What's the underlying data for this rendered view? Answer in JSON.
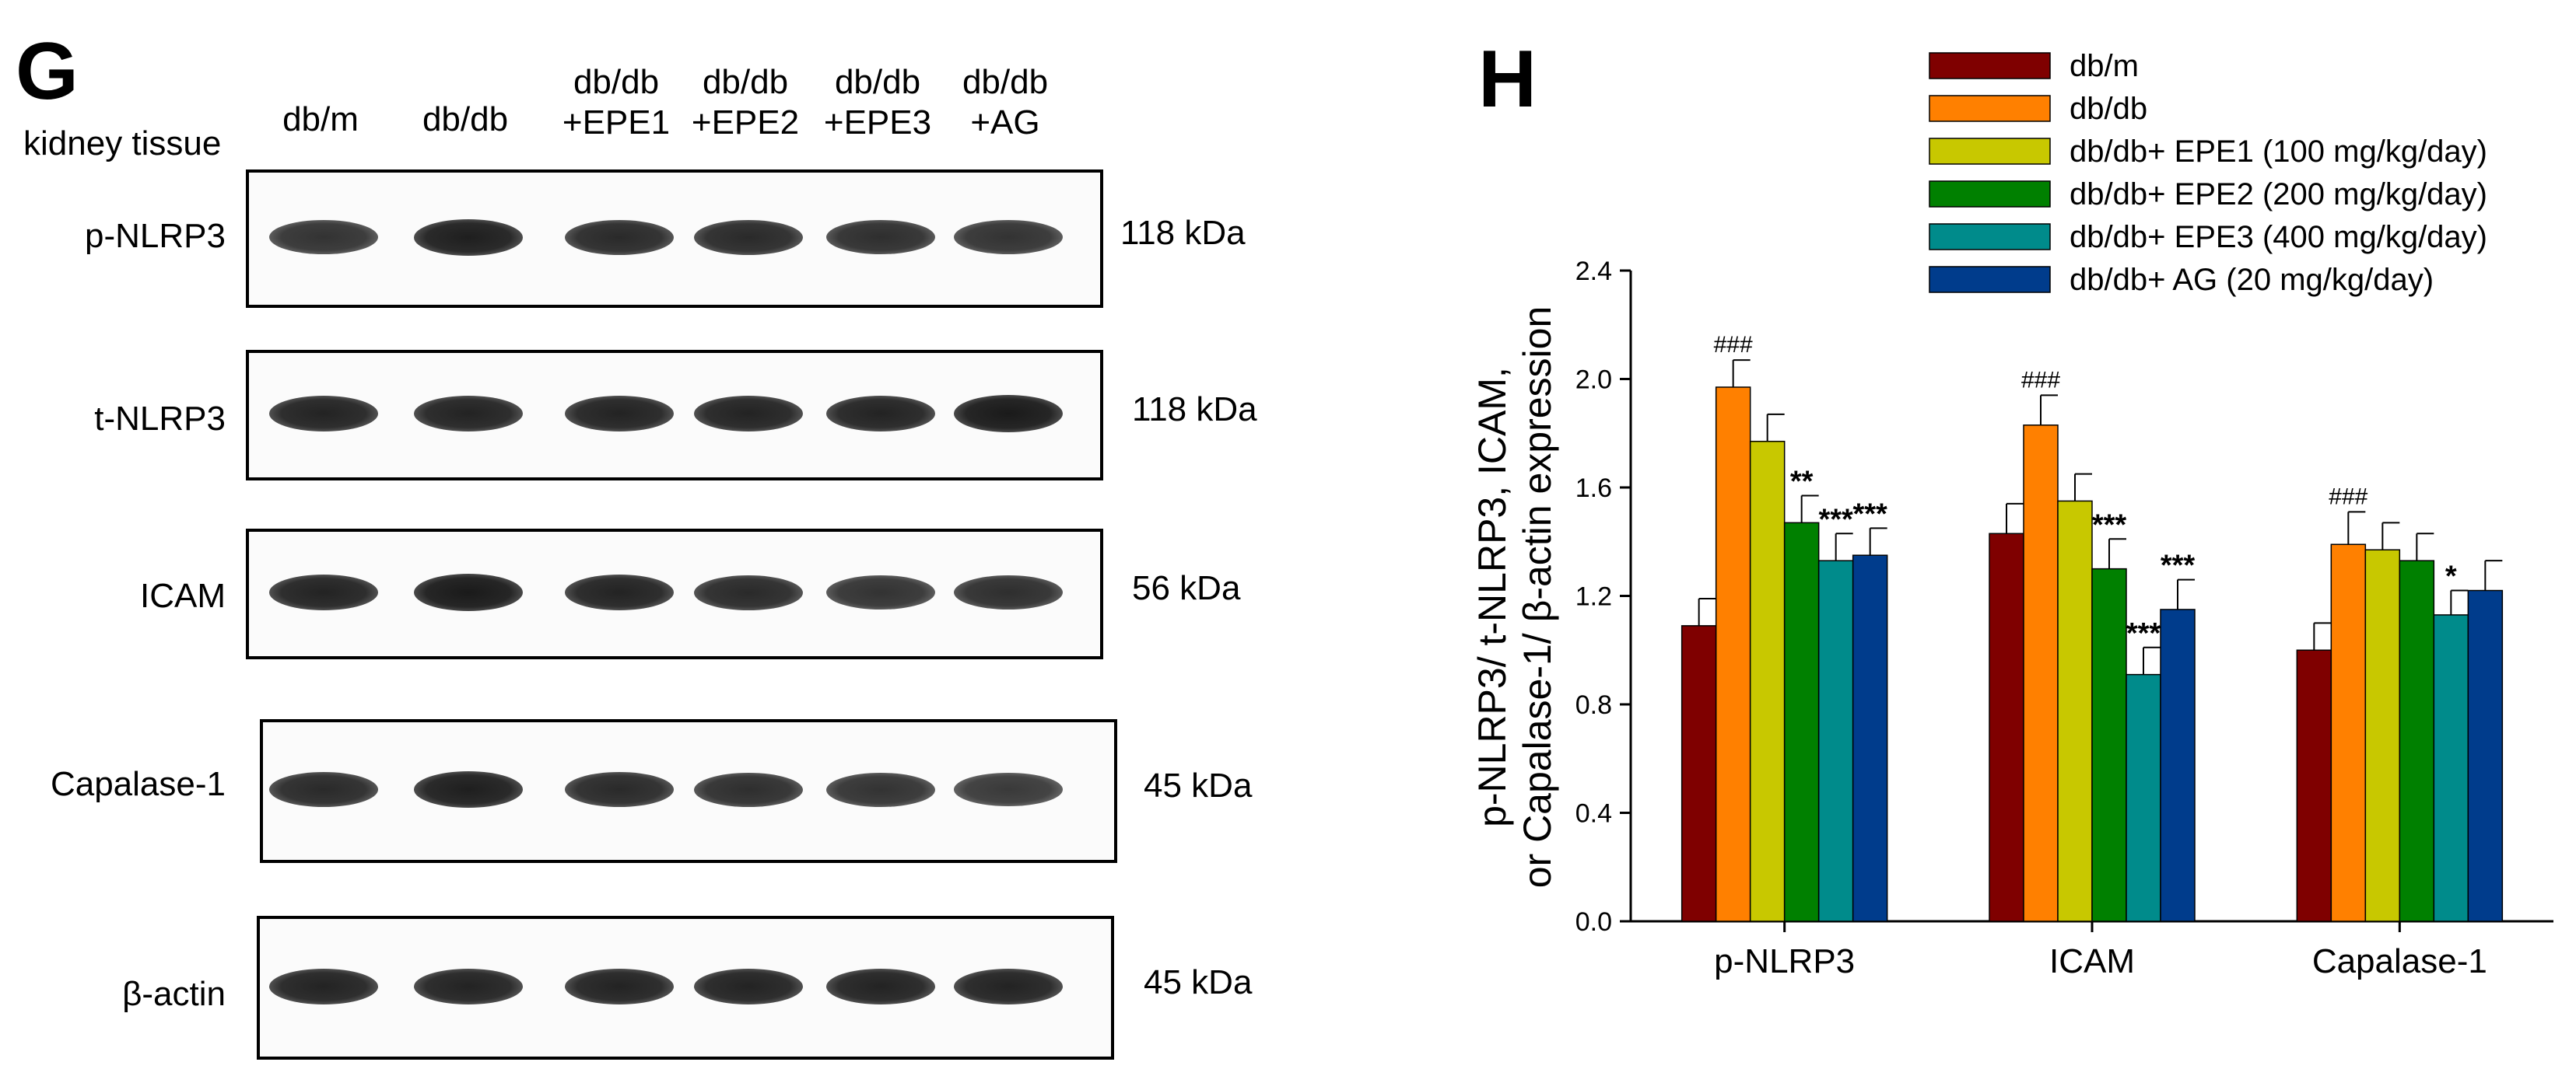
{
  "panel_g": {
    "letter": "G",
    "tissue_label": "kidney tissue",
    "lanes": [
      {
        "line1": "db/m",
        "line2": ""
      },
      {
        "line1": "db/db",
        "line2": ""
      },
      {
        "line1": "db/db",
        "line2": "+EPE1"
      },
      {
        "line1": "db/db",
        "line2": "+EPE2"
      },
      {
        "line1": "db/db",
        "line2": "+EPE3"
      },
      {
        "line1": "db/db",
        "line2": "+AG"
      }
    ],
    "blots": [
      {
        "label": "p-NLRP3",
        "kda": "118 kDa",
        "band_intensity": [
          0.75,
          0.95,
          0.85,
          0.85,
          0.8,
          0.75
        ]
      },
      {
        "label": "t-NLRP3",
        "kda": "118 kDa",
        "band_intensity": [
          0.9,
          0.9,
          0.9,
          0.9,
          0.9,
          1.0
        ]
      },
      {
        "label": "ICAM",
        "kda": "56 kDa",
        "band_intensity": [
          0.9,
          1.0,
          0.9,
          0.85,
          0.75,
          0.8
        ]
      },
      {
        "label": "Capalase-1",
        "kda": "45 kDa",
        "band_intensity": [
          0.85,
          0.95,
          0.85,
          0.8,
          0.75,
          0.7
        ]
      },
      {
        "label": "β-actin",
        "kda": "45 kDa",
        "band_intensity": [
          0.9,
          0.9,
          0.9,
          0.9,
          0.9,
          0.9
        ]
      }
    ]
  },
  "panel_h": {
    "letter": "H"
  },
  "chart_data": {
    "type": "bar",
    "ylabel_lines": [
      "p-NLRP3/ t-NLRP3, ICAM,",
      "or Capalase-1/ β-actin expression"
    ],
    "ylim": [
      0,
      2.4
    ],
    "yticks": [
      "0.0",
      "0.4",
      "0.8",
      "1.2",
      "1.6",
      "2.0",
      "2.4"
    ],
    "categories": [
      "p-NLRP3",
      "ICAM",
      "Capalase-1"
    ],
    "legend_position": "top",
    "series": [
      {
        "name": "db/m",
        "color": "#7f0000",
        "values": [
          1.09,
          1.43,
          1.0
        ],
        "errors": [
          0.1,
          0.11,
          0.1
        ],
        "annotations": [
          "",
          "",
          ""
        ]
      },
      {
        "name": "db/db",
        "color": "#ff8000",
        "values": [
          1.97,
          1.83,
          1.39
        ],
        "errors": [
          0.1,
          0.11,
          0.12
        ],
        "annotations": [
          "###",
          "###",
          "###"
        ]
      },
      {
        "name": "db/db+ EPE1 (100 mg/kg/day)",
        "color": "#c8c800",
        "values": [
          1.77,
          1.55,
          1.37
        ],
        "errors": [
          0.1,
          0.1,
          0.1
        ],
        "annotations": [
          "",
          "",
          ""
        ]
      },
      {
        "name": "db/db+ EPE2 (200 mg/kg/day)",
        "color": "#008000",
        "values": [
          1.47,
          1.3,
          1.33
        ],
        "errors": [
          0.1,
          0.11,
          0.1
        ],
        "annotations": [
          "**",
          "***",
          ""
        ]
      },
      {
        "name": "db/db+ EPE3 (400 mg/kg/day)",
        "color": "#008b8b",
        "values": [
          1.33,
          0.91,
          1.13
        ],
        "errors": [
          0.1,
          0.1,
          0.09
        ],
        "annotations": [
          "***",
          "***",
          "*"
        ]
      },
      {
        "name": "db/db+ AG (20 mg/kg/day)",
        "color": "#003c8c",
        "values": [
          1.35,
          1.15,
          1.22
        ],
        "errors": [
          0.1,
          0.11,
          0.11
        ],
        "annotations": [
          "***",
          "***",
          ""
        ]
      }
    ]
  }
}
